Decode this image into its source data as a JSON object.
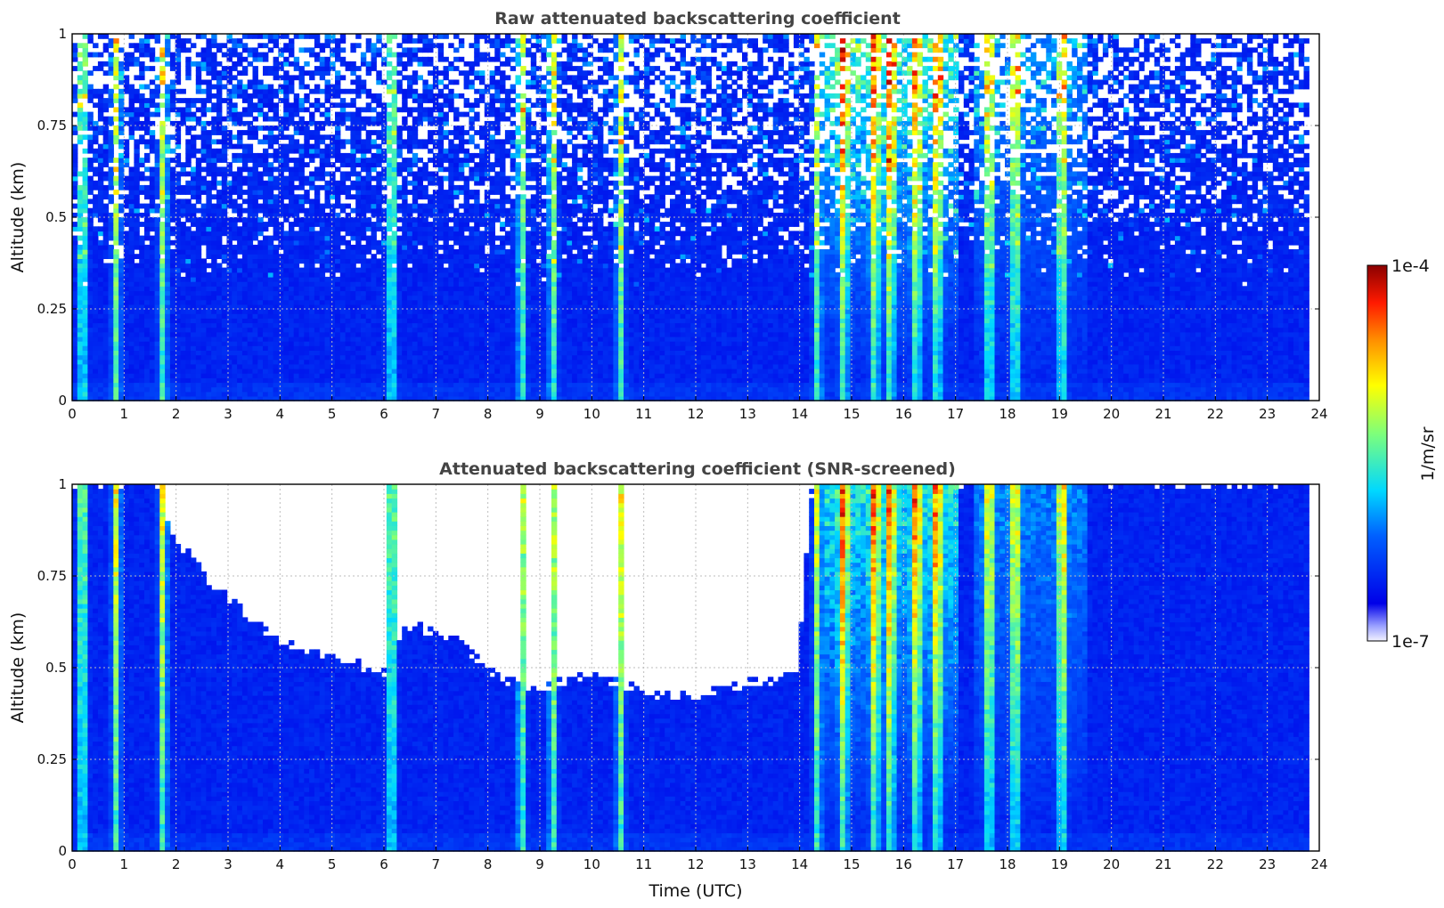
{
  "chart_data": [
    {
      "type": "heatmap",
      "title": "Raw attenuated backscattering coefficient",
      "xlabel": "",
      "ylabel": "Altitude (km)",
      "xlim": [
        0,
        24
      ],
      "ylim": [
        0,
        1
      ],
      "x_ticks": [
        "0",
        "1",
        "2",
        "3",
        "4",
        "5",
        "6",
        "7",
        "8",
        "9",
        "10",
        "11",
        "12",
        "13",
        "14",
        "15",
        "16",
        "17",
        "18",
        "19",
        "20",
        "21",
        "22",
        "23",
        "24"
      ],
      "y_ticks": [
        "0",
        "0.25",
        "0.5",
        "0.75",
        "1"
      ],
      "grid": true,
      "data_end_time": 23.8,
      "noise_onset_altitude": 0.3,
      "aerosol_plumes_utc": [
        0.15,
        0.8,
        1.7,
        6.1,
        8.6,
        9.2,
        10.5,
        14.3,
        14.8,
        15.4,
        15.7,
        16.2,
        16.6,
        17.6,
        18.1,
        19.0
      ]
    },
    {
      "type": "heatmap",
      "title": "Attenuated backscattering coefficient (SNR-screened)",
      "xlabel": "Time (UTC)",
      "ylabel": "Altitude (km)",
      "xlim": [
        0,
        24
      ],
      "ylim": [
        0,
        1
      ],
      "x_ticks": [
        "0",
        "1",
        "2",
        "3",
        "4",
        "5",
        "6",
        "7",
        "8",
        "9",
        "10",
        "11",
        "12",
        "13",
        "14",
        "15",
        "16",
        "17",
        "18",
        "19",
        "20",
        "21",
        "22",
        "23",
        "24"
      ],
      "y_ticks": [
        "0",
        "0.25",
        "0.5",
        "0.75",
        "1"
      ],
      "grid": true,
      "data_end_time": 23.8,
      "screened_boundary_km": [
        [
          0,
          1.0
        ],
        [
          1.5,
          1.0
        ],
        [
          2.0,
          0.82
        ],
        [
          3.0,
          0.68
        ],
        [
          4.0,
          0.56
        ],
        [
          5.0,
          0.52
        ],
        [
          5.9,
          0.48
        ],
        [
          6.5,
          0.62
        ],
        [
          7.5,
          0.55
        ],
        [
          8.2,
          0.46
        ],
        [
          9.0,
          0.44
        ],
        [
          10.0,
          0.48
        ],
        [
          11.0,
          0.42
        ],
        [
          12.0,
          0.42
        ],
        [
          13.0,
          0.45
        ],
        [
          13.9,
          0.48
        ],
        [
          14.2,
          1.0
        ],
        [
          24,
          1.0
        ]
      ]
    }
  ],
  "colorbar": {
    "label": "1/m/sr",
    "min_label": "1e-7",
    "max_label": "1e-4",
    "scale": "log",
    "colormap": "jet"
  }
}
